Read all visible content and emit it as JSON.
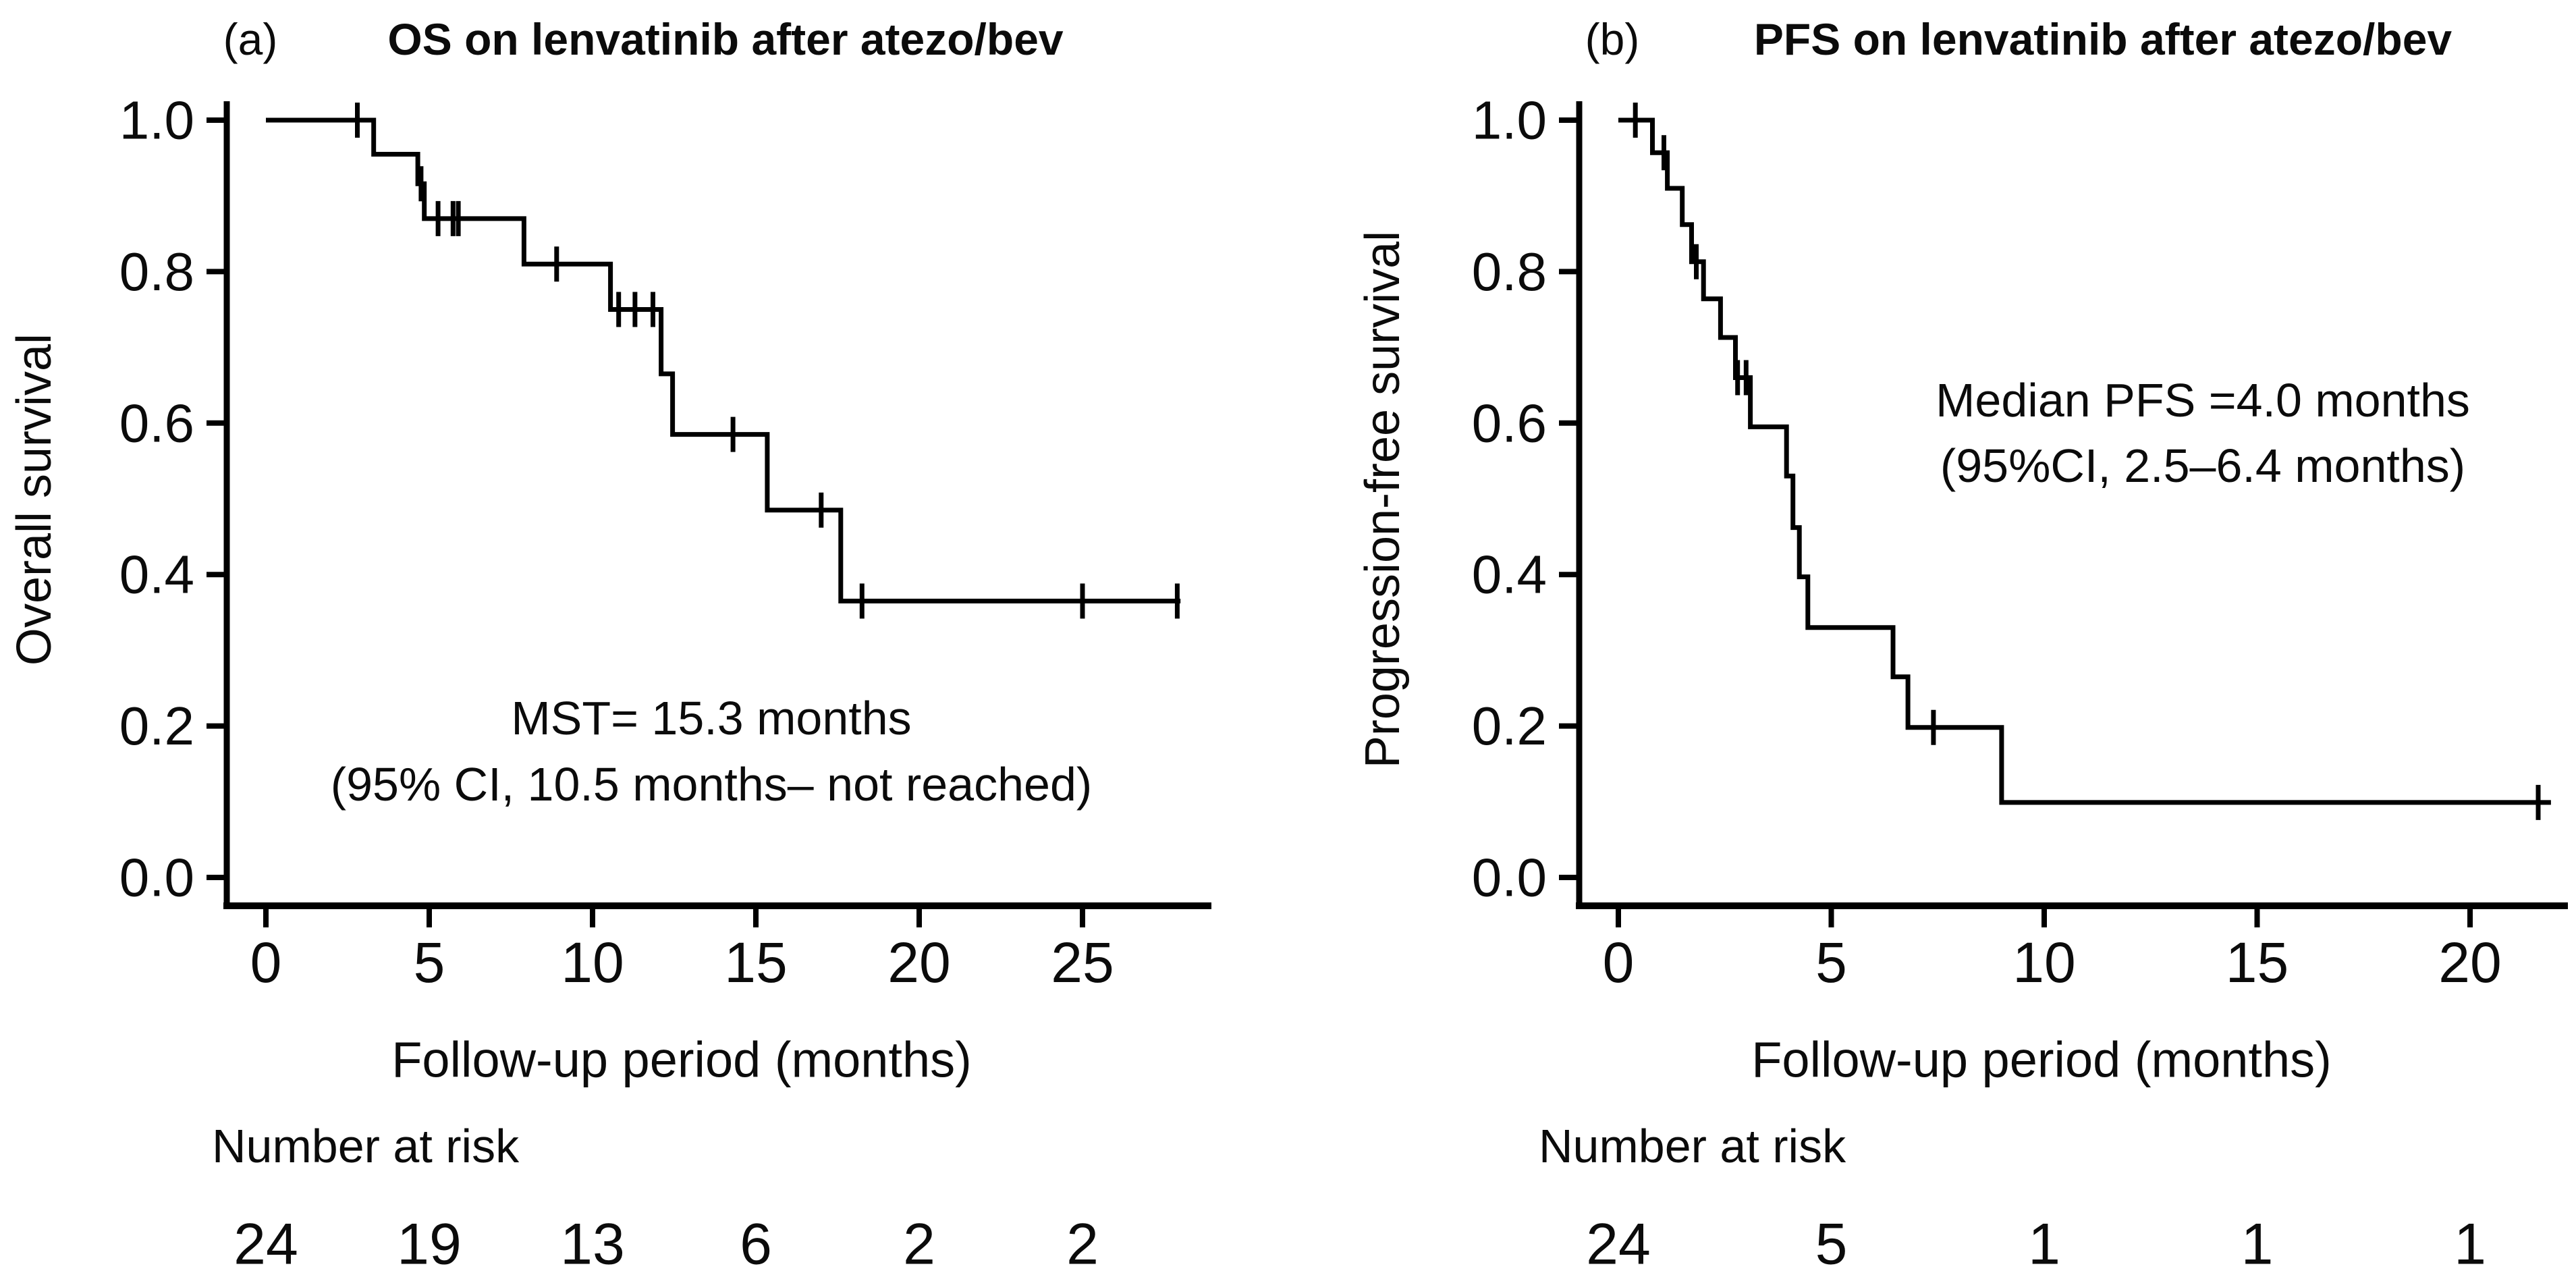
{
  "figure": {
    "background": "#ffffff",
    "line_color": "#000000",
    "text_color": "#0b0b0b"
  },
  "chart_data": [
    {
      "type": "line",
      "subtype": "kaplan-meier-step",
      "panel_label": "(a)",
      "title": "OS on lenvatinib after atezo/bev",
      "xlabel": "Follow-up period (months)",
      "ylabel": "Overall survival",
      "xlim": [
        0,
        28.5
      ],
      "ylim": [
        0,
        1.0
      ],
      "grid": false,
      "legend_position": "none",
      "xtick_values": [
        0,
        5,
        10,
        15,
        20,
        25
      ],
      "xtick_labels": [
        "0",
        "5",
        "10",
        "15",
        "20",
        "25"
      ],
      "ytick_values": [
        0.0,
        0.2,
        0.4,
        0.6,
        0.8,
        1.0
      ],
      "ytick_labels": [
        "0.0",
        "0.2",
        "0.4",
        "0.6",
        "0.8",
        "1.0"
      ],
      "series": [
        {
          "name": "Overall survival",
          "start": [
            0,
            1.0
          ],
          "steps": [
            [
              3.3,
              0.955
            ],
            [
              4.65,
              0.916
            ],
            [
              4.85,
              0.87
            ],
            [
              7.9,
              0.81
            ],
            [
              10.55,
              0.75
            ],
            [
              12.1,
              0.665
            ],
            [
              12.45,
              0.585
            ],
            [
              15.35,
              0.485
            ],
            [
              17.6,
              0.365
            ]
          ],
          "end_x": 28.0,
          "censor_marks": [
            [
              2.8,
              1.0
            ],
            [
              4.75,
              0.916
            ],
            [
              5.27,
              0.87
            ],
            [
              5.73,
              0.87
            ],
            [
              5.89,
              0.87
            ],
            [
              8.9,
              0.81
            ],
            [
              10.8,
              0.75
            ],
            [
              11.3,
              0.75
            ],
            [
              11.85,
              0.75
            ],
            [
              14.3,
              0.585
            ],
            [
              17.0,
              0.485
            ],
            [
              18.25,
              0.365
            ],
            [
              25.0,
              0.365
            ],
            [
              27.9,
              0.365
            ]
          ]
        }
      ],
      "annotation_lines": [
        "MST= 15.3 months",
        "(95% CI, 10.5 months– not reached)"
      ],
      "number_at_risk_label": "Number at risk",
      "number_at_risk": [
        "24",
        "19",
        "13",
        "6",
        "2",
        "2"
      ]
    },
    {
      "type": "line",
      "subtype": "kaplan-meier-step",
      "panel_label": "(b)",
      "title": "PFS on lenvatinib after atezo/bev",
      "xlabel": "Follow-up period (months)",
      "ylabel": "Progression-free survival",
      "xlim": [
        0,
        22.5
      ],
      "ylim": [
        0,
        1.0
      ],
      "grid": false,
      "legend_position": "none",
      "xtick_values": [
        0,
        5,
        10,
        15,
        20
      ],
      "xtick_labels": [
        "0",
        "5",
        "10",
        "15",
        "20"
      ],
      "ytick_values": [
        0.0,
        0.2,
        0.4,
        0.6,
        0.8,
        1.0
      ],
      "ytick_labels": [
        "0.0",
        "0.2",
        "0.4",
        "0.6",
        "0.8",
        "1.0"
      ],
      "series": [
        {
          "name": "Progression-free survival",
          "start": [
            0,
            1.0
          ],
          "steps": [
            [
              0.8,
              0.957
            ],
            [
              1.15,
              0.91
            ],
            [
              1.5,
              0.862
            ],
            [
              1.72,
              0.813
            ],
            [
              2.0,
              0.764
            ],
            [
              2.4,
              0.713
            ],
            [
              2.75,
              0.66
            ],
            [
              3.1,
              0.595
            ],
            [
              3.95,
              0.53
            ],
            [
              4.1,
              0.462
            ],
            [
              4.25,
              0.397
            ],
            [
              4.45,
              0.33
            ],
            [
              6.45,
              0.265
            ],
            [
              6.8,
              0.198
            ],
            [
              9.0,
              0.099
            ]
          ],
          "end_x": 21.9,
          "censor_marks": [
            [
              0.4,
              1.0
            ],
            [
              1.07,
              0.957
            ],
            [
              1.83,
              0.813
            ],
            [
              2.8,
              0.66
            ],
            [
              3.0,
              0.66
            ],
            [
              7.4,
              0.198
            ],
            [
              21.6,
              0.099
            ]
          ]
        }
      ],
      "annotation_lines": [
        "Median PFS =4.0 months",
        "(95%CI, 2.5–6.4 months)"
      ],
      "number_at_risk_label": "Number at risk",
      "number_at_risk": [
        "24",
        "5",
        "1",
        "1",
        "1"
      ]
    }
  ]
}
